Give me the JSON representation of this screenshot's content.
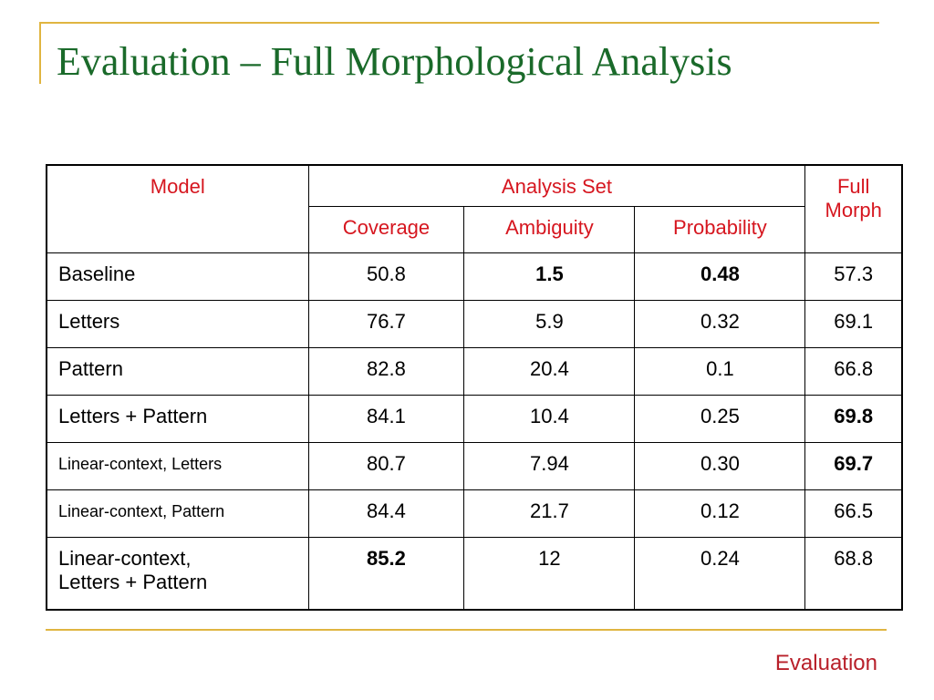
{
  "slide": {
    "title": "Evaluation – Full Morphological Analysis",
    "footer": "Evaluation"
  },
  "table": {
    "header": {
      "model": "Model",
      "analysis_set": "Analysis Set",
      "full_morph_line1": "Full",
      "full_morph_line2": "Morph",
      "coverage": "Coverage",
      "ambiguity": "Ambiguity",
      "probability": "Probability"
    },
    "rows": [
      {
        "model": "Baseline",
        "coverage": "50.8",
        "ambiguity": "1.5",
        "probability": "0.48",
        "full_morph": "57.3"
      },
      {
        "model": "Letters",
        "coverage": "76.7",
        "ambiguity": "5.9",
        "probability": "0.32",
        "full_morph": "69.1"
      },
      {
        "model": "Pattern",
        "coverage": "82.8",
        "ambiguity": "20.4",
        "probability": "0.1",
        "full_morph": "66.8"
      },
      {
        "model": "Letters + Pattern",
        "coverage": "84.1",
        "ambiguity": "10.4",
        "probability": "0.25",
        "full_morph": "69.8"
      },
      {
        "model": "Linear-context, Letters",
        "coverage": "80.7",
        "ambiguity": "7.94",
        "probability": "0.30",
        "full_morph": "69.7"
      },
      {
        "model": "Linear-context, Pattern",
        "coverage": "84.4",
        "ambiguity": "21.7",
        "probability": "0.12",
        "full_morph": "66.5"
      },
      {
        "model_line1": "Linear-context,",
        "model_line2": "Letters + Pattern",
        "coverage": "85.2",
        "ambiguity": "12",
        "probability": "0.24",
        "full_morph": "68.8"
      }
    ]
  },
  "colors": {
    "title": "#1a6a2a",
    "header_text": "#d6161f",
    "accent_line": "#e0b541",
    "footer_text": "#b8202a"
  }
}
